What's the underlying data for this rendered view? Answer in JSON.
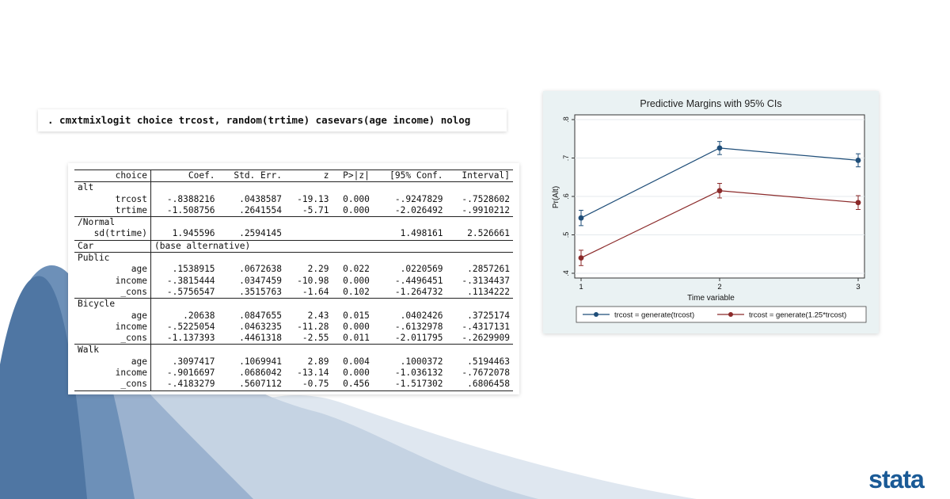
{
  "command": ". cmxtmixlogit choice trcost, random(trtime) casevars(age income) nolog",
  "table": {
    "headers": [
      "choice",
      "Coef.",
      "Std. Err.",
      "z",
      "P>|z|",
      "[95% Conf.",
      "Interval]"
    ],
    "groups": [
      {
        "label": "alt",
        "rows": [
          [
            "trcost",
            "-.8388216",
            ".0438587",
            "-19.13",
            "0.000",
            "-.9247829",
            "-.7528602"
          ],
          [
            "trtime",
            "-1.508756",
            ".2641554",
            "-5.71",
            "0.000",
            "-2.026492",
            "-.9910212"
          ]
        ]
      },
      {
        "label": "/Normal",
        "rows": [
          [
            "sd(trtime)",
            "1.945596",
            ".2594145",
            "",
            "",
            "1.498161",
            "2.526661"
          ]
        ]
      },
      {
        "label": "Car",
        "note": "(base alternative)",
        "rows": []
      },
      {
        "label": "Public",
        "rows": [
          [
            "age",
            ".1538915",
            ".0672638",
            "2.29",
            "0.022",
            ".0220569",
            ".2857261"
          ],
          [
            "income",
            "-.3815444",
            ".0347459",
            "-10.98",
            "0.000",
            "-.4496451",
            "-.3134437"
          ],
          [
            "_cons",
            "-.5756547",
            ".3515763",
            "-1.64",
            "0.102",
            "-1.264732",
            ".1134222"
          ]
        ]
      },
      {
        "label": "Bicycle",
        "rows": [
          [
            "age",
            ".20638",
            ".0847655",
            "2.43",
            "0.015",
            ".0402426",
            ".3725174"
          ],
          [
            "income",
            "-.5225054",
            ".0463235",
            "-11.28",
            "0.000",
            "-.6132978",
            "-.4317131"
          ],
          [
            "_cons",
            "-1.137393",
            ".4461318",
            "-2.55",
            "0.011",
            "-2.011795",
            "-.2629909"
          ]
        ]
      },
      {
        "label": "Walk",
        "rows": [
          [
            "age",
            ".3097417",
            ".1069941",
            "2.89",
            "0.004",
            ".1000372",
            ".5194463"
          ],
          [
            "income",
            "-.9016697",
            ".0686042",
            "-13.14",
            "0.000",
            "-1.036132",
            "-.7672078"
          ],
          [
            "_cons",
            "-.4183279",
            ".5607112",
            "-0.75",
            "0.456",
            "-1.517302",
            ".6806458"
          ]
        ]
      }
    ]
  },
  "chart_data": {
    "type": "line",
    "title": "Predictive Margins with 95% CIs",
    "xlabel": "Time variable",
    "ylabel": "Pr(Alt)",
    "x": [
      1,
      2,
      3
    ],
    "xticks": [
      "1",
      "2",
      "3"
    ],
    "yticks": [
      ".4",
      ".5",
      ".6",
      ".7",
      ".8"
    ],
    "ylim": [
      0.4,
      0.8
    ],
    "grid": true,
    "legend": "bottom",
    "series": [
      {
        "name": "trcost = generate(trcost)",
        "color": "#1f4e79",
        "values": [
          0.544,
          0.726,
          0.694
        ],
        "ci_low": [
          0.524,
          0.709,
          0.677
        ],
        "ci_high": [
          0.564,
          0.743,
          0.711
        ]
      },
      {
        "name": "trcost = generate(1.25*trcost)",
        "color": "#8b2a2a",
        "values": [
          0.44,
          0.615,
          0.584
        ],
        "ci_low": [
          0.42,
          0.596,
          0.566
        ],
        "ci_high": [
          0.46,
          0.634,
          0.602
        ]
      }
    ]
  },
  "brand": {
    "logo_text": "stata",
    "accent": "#1a5a96"
  }
}
